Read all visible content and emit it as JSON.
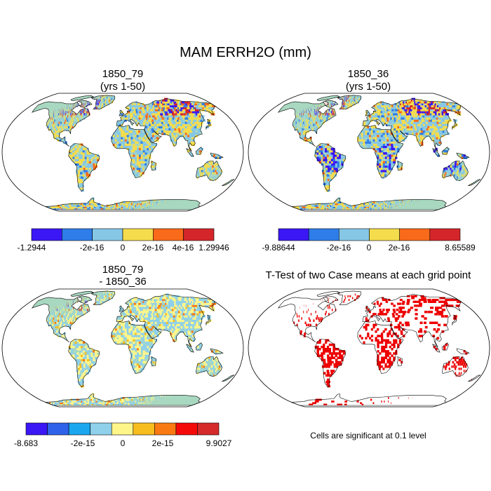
{
  "chart_data": [
    {
      "type": "map",
      "title": "1850_79",
      "subtitle": "(yrs 1-50)",
      "colorbar": {
        "colors": [
          "#3b17f5",
          "#2e7de9",
          "#86c7e6",
          "#f5dc4c",
          "#f96a1a",
          "#d4262a"
        ],
        "tick_labels": [
          "-1.2944",
          "-2e-16",
          "0",
          "2e-16",
          "4e-16",
          "1.29946"
        ]
      }
    },
    {
      "type": "map",
      "title": "1850_36",
      "subtitle": "(yrs 1-50)",
      "colorbar": {
        "colors": [
          "#3b17f5",
          "#2e7de9",
          "#86c7e6",
          "#f5dc4c",
          "#f96a1a",
          "#d4262a"
        ],
        "tick_labels": [
          "-9.88644",
          "-2e-16",
          "0",
          "2e-16",
          "8.65589"
        ]
      }
    },
    {
      "type": "map",
      "title": "1850_79",
      "subtitle": "- 1850_36",
      "colorbar": {
        "colors": [
          "#3b17f5",
          "#2e62e9",
          "#1aa7ef",
          "#8fd0ea",
          "#fff68a",
          "#f7bd1e",
          "#f97a12",
          "#f50a0a",
          "#d42a2a"
        ],
        "tick_labels": [
          "-8.683",
          "-2e-15",
          "0",
          "2e-15",
          "9.9027"
        ]
      }
    },
    {
      "type": "map",
      "title": "T-Test of two Case means at each grid point",
      "note": "Cells are significant at 0.1 level"
    }
  ],
  "page": {
    "title": "MAM ERRH2O (mm)"
  },
  "colors": {
    "ocean": "#ffffff",
    "land_base": "#a8d8c0",
    "coast": "#000000",
    "significant": "#ee0000"
  }
}
